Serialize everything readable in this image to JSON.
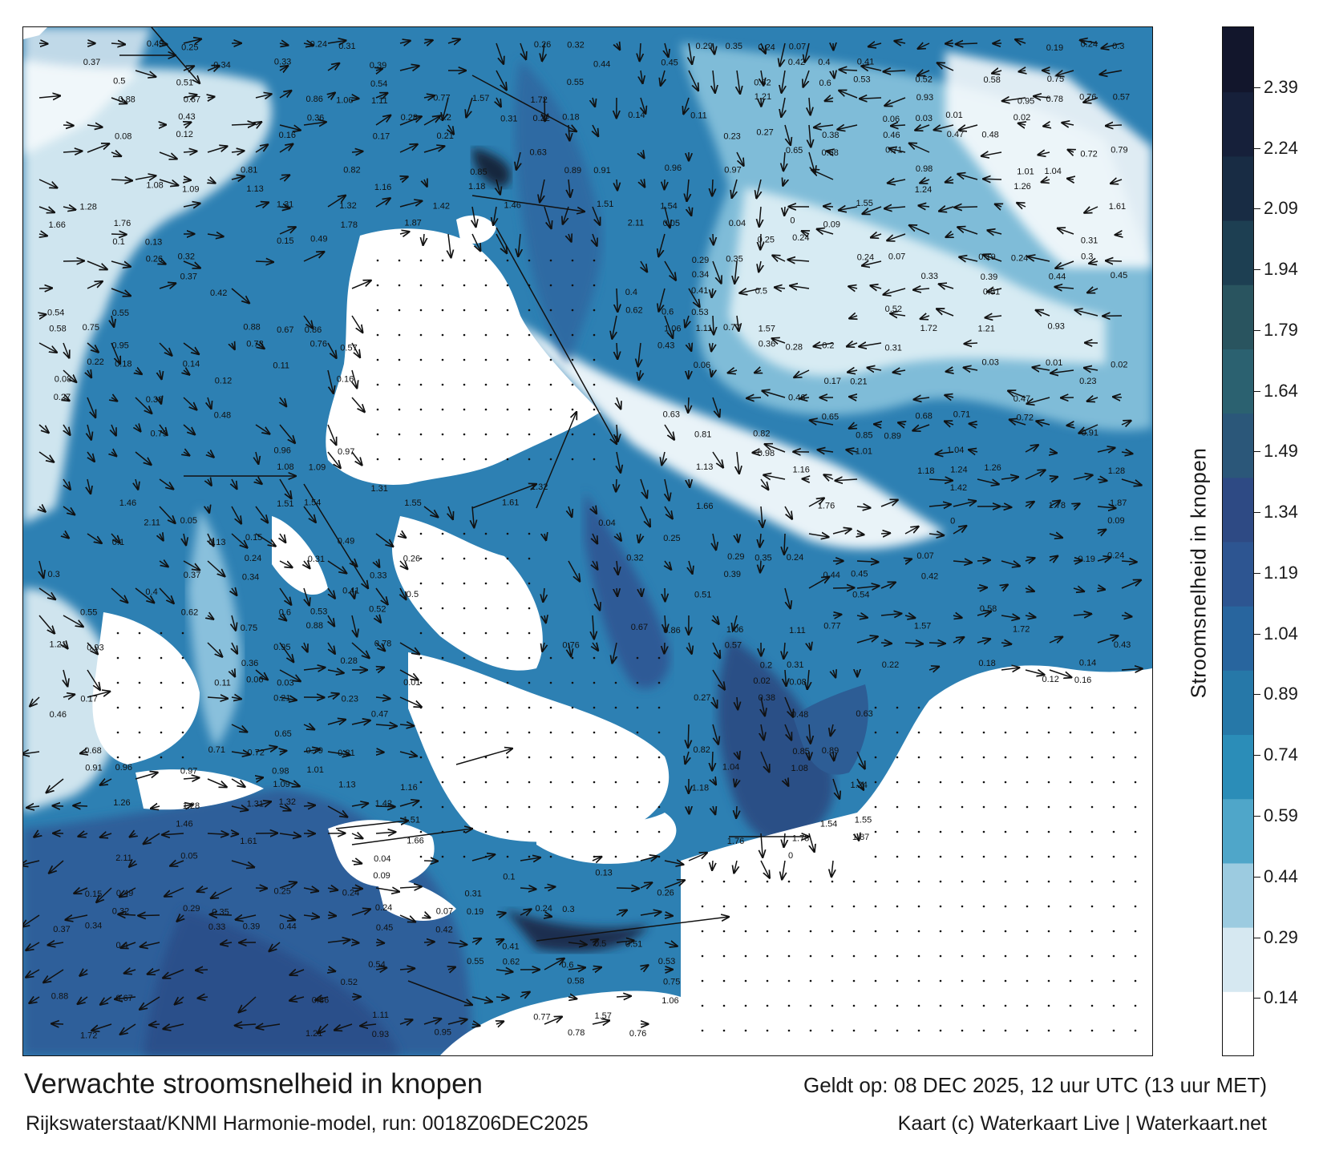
{
  "title": "Verwachte stroomsnelheid in knopen",
  "subtitle": "Rijkswaterstaat/KNMI Harmonie-model, run: 0018Z06DEC2025",
  "valid_time": "Geldt op: 08 DEC 2025, 12 uur UTC (13 uur MET)",
  "credit": "Kaart (c) Waterkaart Live | Waterkaart.net",
  "legend": {
    "title": "Stroomsnelheid in knopen",
    "unit": "knopen",
    "ticks": [
      "2.39",
      "2.24",
      "2.09",
      "1.94",
      "1.79",
      "1.64",
      "1.49",
      "1.34",
      "1.19",
      "1.04",
      "0.89",
      "0.74",
      "0.59",
      "0.44",
      "0.29",
      "0.14"
    ],
    "tick_values": [
      2.39,
      2.24,
      2.09,
      1.94,
      1.79,
      1.64,
      1.49,
      1.34,
      1.19,
      1.04,
      0.89,
      0.74,
      0.59,
      0.44,
      0.29,
      0.14
    ],
    "range": [
      0,
      2.54
    ],
    "colors": [
      "#ffffff",
      "#d6e8f1",
      "#9ccbe0",
      "#4fa6c9",
      "#2b8db8",
      "#2678a8",
      "#28659e",
      "#2d5591",
      "#2e4a84",
      "#2b5779",
      "#2b6170",
      "#29545f",
      "#1d3f52",
      "#182c44",
      "#16203a",
      "#12162c"
    ]
  },
  "map": {
    "type": "current-speed-field",
    "region": "Noord-Nederland / Waddenzee",
    "value_labels": [
      "0.49",
      "0.25",
      "0.24",
      "0.31",
      "0.26",
      "0.32",
      "0.29",
      "0.35",
      "0.24",
      "0.07",
      "0.19",
      "0.24",
      "0.3",
      "0.37",
      "0.34",
      "0.33",
      "0.39",
      "0.44",
      "0.45",
      "0.42",
      "0.4",
      "0.41",
      "0.5",
      "0.51",
      "0.54",
      "0.55",
      "0.62",
      "0.6",
      "0.53",
      "0.52",
      "0.58",
      "0.75",
      "0.88",
      "0.67",
      "0.86",
      "1.06",
      "1.11",
      "0.77",
      "1.57",
      "1.72",
      "1.21",
      "0.93",
      "0.95",
      "0.78",
      "0.76",
      "0.57",
      "0.43",
      "0.36",
      "0.28",
      "0.2",
      "0.31",
      "0.22",
      "0.18",
      "0.14",
      "0.11",
      "0.06",
      "0.03",
      "0.01",
      "0.02",
      "0.08",
      "0.12",
      "0.16",
      "0.17",
      "0.21",
      "0.23",
      "0.27",
      "0.38",
      "0.46",
      "0.47",
      "0.48",
      "0.63",
      "0.65",
      "0.68",
      "0.71",
      "0.72",
      "0.79",
      "0.81",
      "0.82",
      "0.85",
      "0.89",
      "0.91",
      "0.96",
      "0.97",
      "0.98",
      "1.01",
      "1.04",
      "1.08",
      "1.09",
      "1.13",
      "1.16",
      "1.18",
      "1.24",
      "1.26",
      "1.28",
      "1.31",
      "1.32",
      "1.42",
      "1.46",
      "1.51",
      "1.54",
      "1.55",
      "1.61",
      "1.66",
      "1.76",
      "1.78",
      "1.87",
      "2.11",
      "0.05",
      "0.04",
      "0",
      "0.09",
      "0.1",
      "0.13",
      "0.15"
    ]
  }
}
